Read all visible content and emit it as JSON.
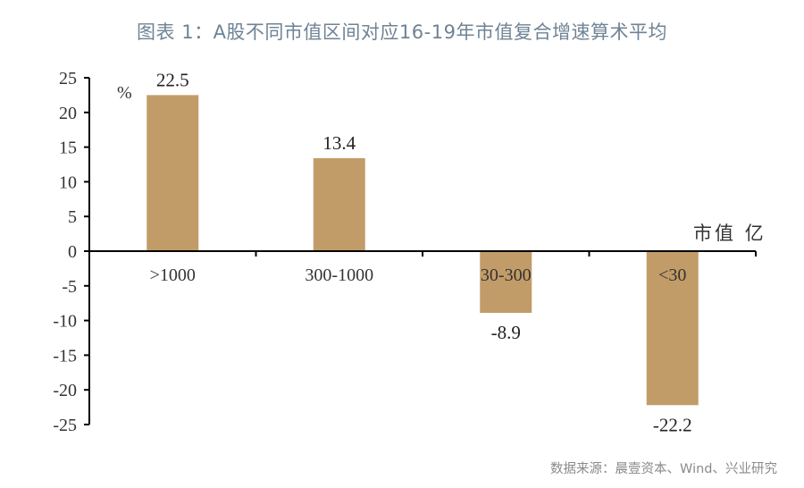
{
  "title": "图表 1：A股不同市值区间对应16-19年市值复合增速算术平均",
  "source": "数据来源：晨壹资本、Wind、兴业研究",
  "colors": {
    "bar": "#c29c68",
    "title": "#6f8395",
    "axis": "#000000",
    "text": "#333333",
    "source": "#8a8a8a"
  },
  "chart_data": {
    "type": "bar",
    "title": "图表 1：A股不同市值区间对应16-19年市值复合增速算术平均",
    "categories": [
      ">1000",
      "300-1000",
      "30-300",
      "<30"
    ],
    "values": [
      22.5,
      13.4,
      -8.9,
      -22.2
    ],
    "value_labels": [
      "22.5",
      "13.4",
      "-8.9",
      "-22.2"
    ],
    "xlabel": "市值 亿",
    "ylabel": "%",
    "ylim": [
      -25,
      25
    ],
    "yticks": [
      25,
      20,
      15,
      10,
      5,
      0,
      -5,
      -10,
      -15,
      -20,
      -25
    ],
    "grid": false,
    "legend": null
  }
}
